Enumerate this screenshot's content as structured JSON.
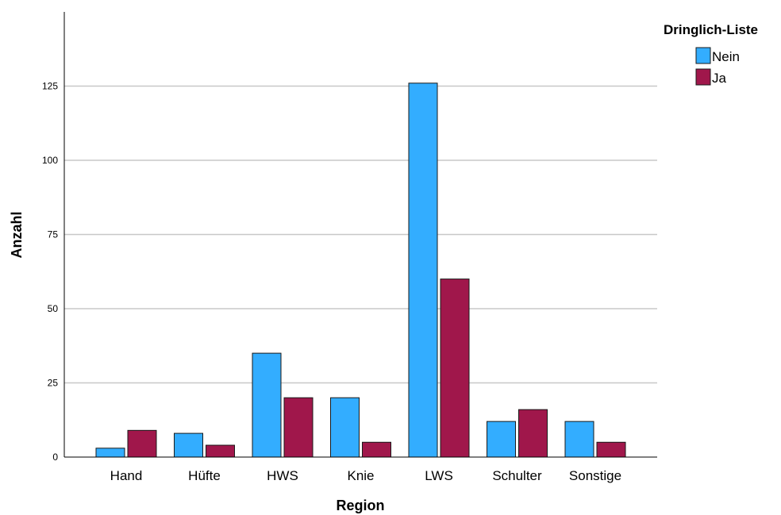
{
  "chart_data": {
    "type": "bar",
    "title": "",
    "xlabel": "Region",
    "ylabel": "Anzahl",
    "categories": [
      "Hand",
      "Hüfte",
      "HWS",
      "Knie",
      "LWS",
      "Schulter",
      "Sonstige"
    ],
    "series": [
      {
        "name": "Nein",
        "color": "#33adff",
        "values": [
          3,
          8,
          35,
          20,
          126,
          12,
          12
        ]
      },
      {
        "name": "Ja",
        "color": "#a0174b",
        "values": [
          9,
          4,
          20,
          5,
          60,
          16,
          5
        ]
      }
    ],
    "ylim": [
      0,
      150
    ],
    "yticks": [
      0,
      25,
      50,
      75,
      100,
      125
    ],
    "grid": true,
    "legend": {
      "title": "Dringlich-Liste",
      "placement": "top-right"
    }
  }
}
